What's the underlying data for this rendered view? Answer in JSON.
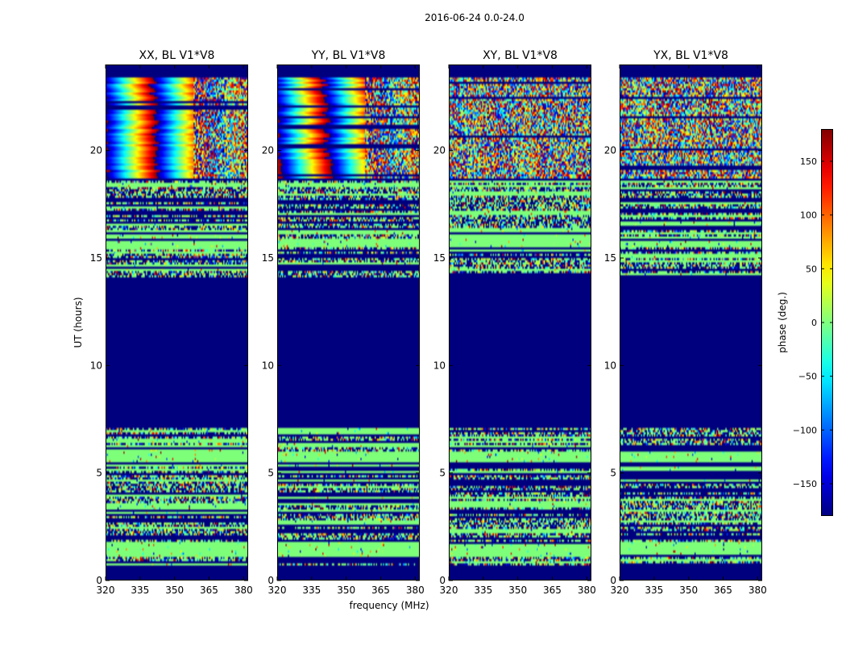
{
  "figure": {
    "suptitle": "2016-06-24 0.0-24.0",
    "colors": {
      "background": "#ffffff",
      "frame": "#000000",
      "flagged": "#00007f",
      "zero_phase": "#7dff7a"
    }
  },
  "chart_data": {
    "type": "heatmap",
    "title": "2016-06-24 0.0-24.0",
    "xlabel": "frequency (MHz)",
    "ylabel": "UT (hours)",
    "xlim": [
      320,
      382
    ],
    "ylim": [
      0,
      24
    ],
    "xticks": [
      320,
      335,
      350,
      365,
      380
    ],
    "yticks": [
      0,
      5,
      10,
      15,
      20
    ],
    "panels": [
      {
        "name": "XX",
        "title": "XX, BL V1*V8",
        "fringe_strength": 1.0
      },
      {
        "name": "YY",
        "title": "YY, BL V1*V8",
        "fringe_strength": 1.0
      },
      {
        "name": "XY",
        "title": "XY, BL V1*V8",
        "fringe_strength": 0.55
      },
      {
        "name": "YX",
        "title": "YX, BL V1*V8",
        "fringe_strength": 0.55
      }
    ],
    "flagged_blocks_hours": [
      [
        0.0,
        0.75
      ],
      [
        7.1,
        14.1
      ],
      [
        4.9,
        5.05
      ],
      [
        18.6,
        18.75
      ]
    ],
    "flat_zero_blocks_hours": [
      [
        1.2,
        1.65
      ],
      [
        5.55,
        6.0
      ],
      [
        15.5,
        15.85
      ]
    ],
    "noisy_blocks_hours": [
      [
        0.75,
        4.9
      ],
      [
        5.05,
        7.1
      ],
      [
        14.1,
        18.6
      ]
    ],
    "fringe_blocks_hours": [
      [
        18.75,
        22.3
      ],
      [
        22.3,
        23.4
      ]
    ],
    "colorbar": {
      "label": "phase (deg.)",
      "range": [
        -180,
        180
      ],
      "ticks": [
        -150,
        -100,
        -50,
        0,
        50,
        100,
        150
      ],
      "tick_labels": [
        "−150",
        "−100",
        "−50",
        "0",
        "50",
        "100",
        "150"
      ],
      "colormap": "jet"
    }
  }
}
